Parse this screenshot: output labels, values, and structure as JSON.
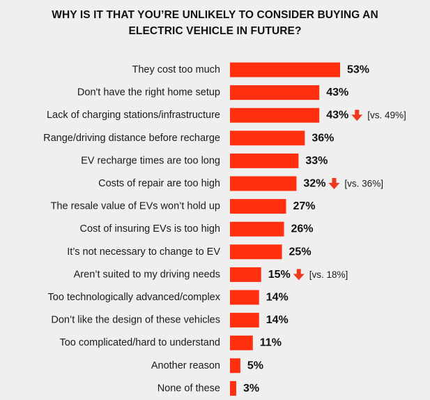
{
  "chart_data": {
    "type": "bar",
    "orientation": "horizontal",
    "title_lines": [
      "WHY IS IT THAT YOU’RE UNLIKELY TO CONSIDER BUYING AN",
      "ELECTRIC VEHICLE IN FUTURE?"
    ],
    "categories": [
      "They cost too much",
      "Don't have the right home setup",
      "Lack of charging stations/infrastructure",
      "Range/driving distance before recharge",
      "EV recharge times are too long",
      "Costs of repair are too high",
      "The resale value of EVs won’t hold up",
      "Cost of insuring EVs is too high",
      "It’s not necessary to change to EV",
      "Aren’t suited to my driving needs",
      "Too technologically advanced/complex",
      "Don’t like the design of these vehicles",
      "Too complicated/hard to understand",
      "Another reason",
      "None of these"
    ],
    "values": [
      53,
      43,
      43,
      36,
      33,
      32,
      27,
      26,
      25,
      15,
      14,
      14,
      11,
      5,
      3
    ],
    "value_labels": [
      "53%",
      "43%",
      "43%",
      "36%",
      "33%",
      "32%",
      "27%",
      "26%",
      "25%",
      "15%",
      "14%",
      "14%",
      "11%",
      "5%",
      "3%"
    ],
    "comparisons": [
      {
        "index": 2,
        "direction": "down",
        "text": "[vs. 49%]"
      },
      {
        "index": 5,
        "direction": "down",
        "text": "[vs. 36%]"
      },
      {
        "index": 9,
        "direction": "down",
        "text": "[vs. 18%]"
      }
    ],
    "xlim": [
      0,
      53
    ],
    "bar_color": "#ff2f0f",
    "arrow_color": "#f03a20",
    "grid": false,
    "legend": "none"
  }
}
